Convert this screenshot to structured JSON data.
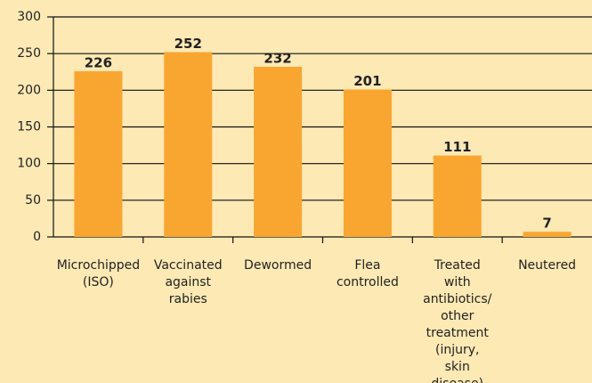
{
  "chart_data": {
    "type": "bar",
    "categories": [
      "Microchipped (ISO)",
      "Vaccinated against rabies",
      "Dewormed",
      "Flea controlled",
      "Treated with antibiotics/ other treatment (injury, skin disease)",
      "Neutered"
    ],
    "values": [
      226,
      252,
      232,
      201,
      111,
      7
    ],
    "color": "#f9a630",
    "ylim": [
      0,
      300
    ],
    "yticks": [
      0,
      50,
      100,
      150,
      200,
      250,
      300
    ],
    "grid": true
  }
}
